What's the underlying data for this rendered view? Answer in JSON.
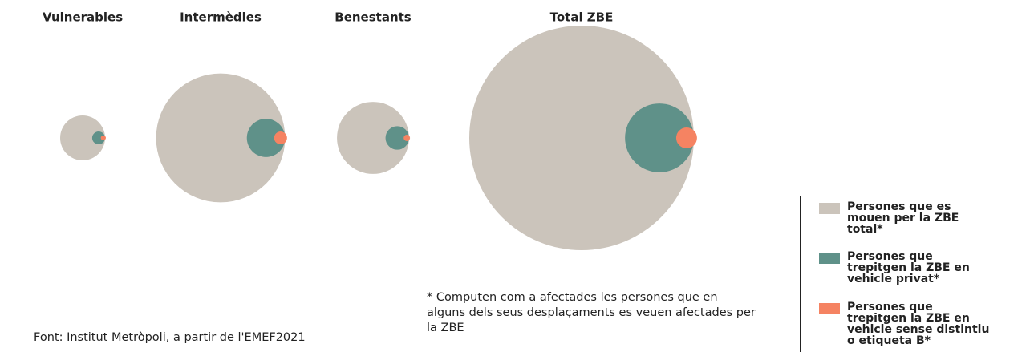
{
  "chart_data": {
    "type": "bubble",
    "categories": [
      "Vulnerables",
      "Intermèdies",
      "Benestants",
      "Total ZBE"
    ],
    "series": [
      {
        "name": "Persones que es mouen per la ZBE total*",
        "color": "#cbc4bb",
        "values": [
          4,
          33,
          10.3,
          100
        ]
      },
      {
        "name": "Persones que trepitgen la ZBE en vehicle privat*",
        "color": "#5f9189",
        "values": [
          0.33,
          2.9,
          1.1,
          9.4
        ]
      },
      {
        "name": "Persones que trepitgen la ZBE en vehicle sense distintiu o etiqueta B*",
        "color": "#f58362",
        "values": [
          0.05,
          0.33,
          0.08,
          0.86
        ]
      }
    ],
    "note": "* Computen com a afectades les persones que en alguns dels seus desplaçaments es veuen afectades per la ZBE",
    "source": "Font: Institut Metròpoli, a partir de l'EMEF2021"
  }
}
